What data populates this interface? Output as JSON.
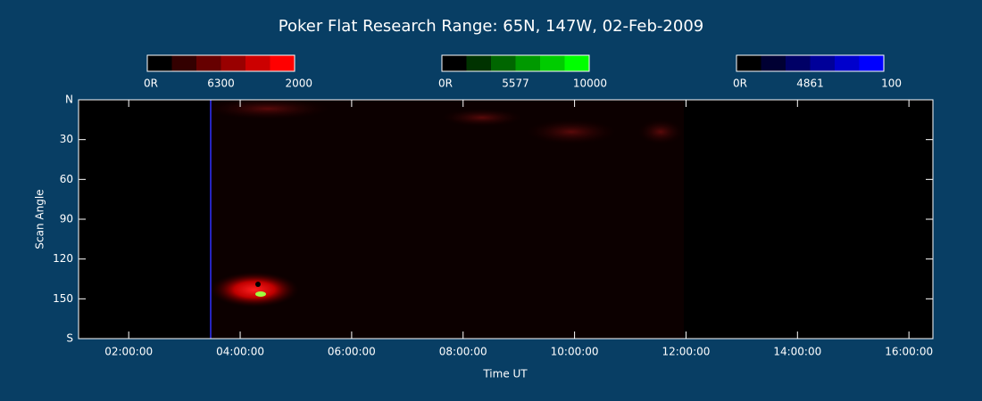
{
  "chart_data": {
    "type": "keogram",
    "title": "Poker Flat Research Range: 65N, 147W, 02-Feb-2009",
    "xlabel": "Time UT",
    "ylabel": "Scan Angle",
    "xlim": [
      1.1,
      16.43
    ],
    "xticks": [
      {
        "value": 2,
        "label": "02:00:00"
      },
      {
        "value": 4,
        "label": "04:00:00"
      },
      {
        "value": 6,
        "label": "06:00:00"
      },
      {
        "value": 8,
        "label": "08:00:00"
      },
      {
        "value": 10,
        "label": "10:00:00"
      },
      {
        "value": 12,
        "label": "12:00:00"
      },
      {
        "value": 14,
        "label": "14:00:00"
      },
      {
        "value": 16,
        "label": "16:00:00"
      }
    ],
    "ylim": [
      0,
      180
    ],
    "yticks": [
      {
        "value": 0,
        "label": "N"
      },
      30,
      60,
      90,
      120,
      150,
      {
        "value": 180,
        "label": "S"
      }
    ],
    "colorbars": [
      {
        "labels": [
          "0R",
          "6300",
          "2000"
        ],
        "colors": [
          "#000000",
          "#330000",
          "#660000",
          "#990000",
          "#cc0000",
          "#ff0000"
        ]
      },
      {
        "labels": [
          "0R",
          "5577",
          "10000"
        ],
        "colors": [
          "#000000",
          "#003300",
          "#006600",
          "#009900",
          "#00cc00",
          "#00ff00"
        ]
      },
      {
        "labels": [
          "0R",
          "4861",
          "100"
        ],
        "colors": [
          "#000000",
          "#000033",
          "#000066",
          "#000099",
          "#0000cc",
          "#0000ff"
        ]
      }
    ]
  }
}
